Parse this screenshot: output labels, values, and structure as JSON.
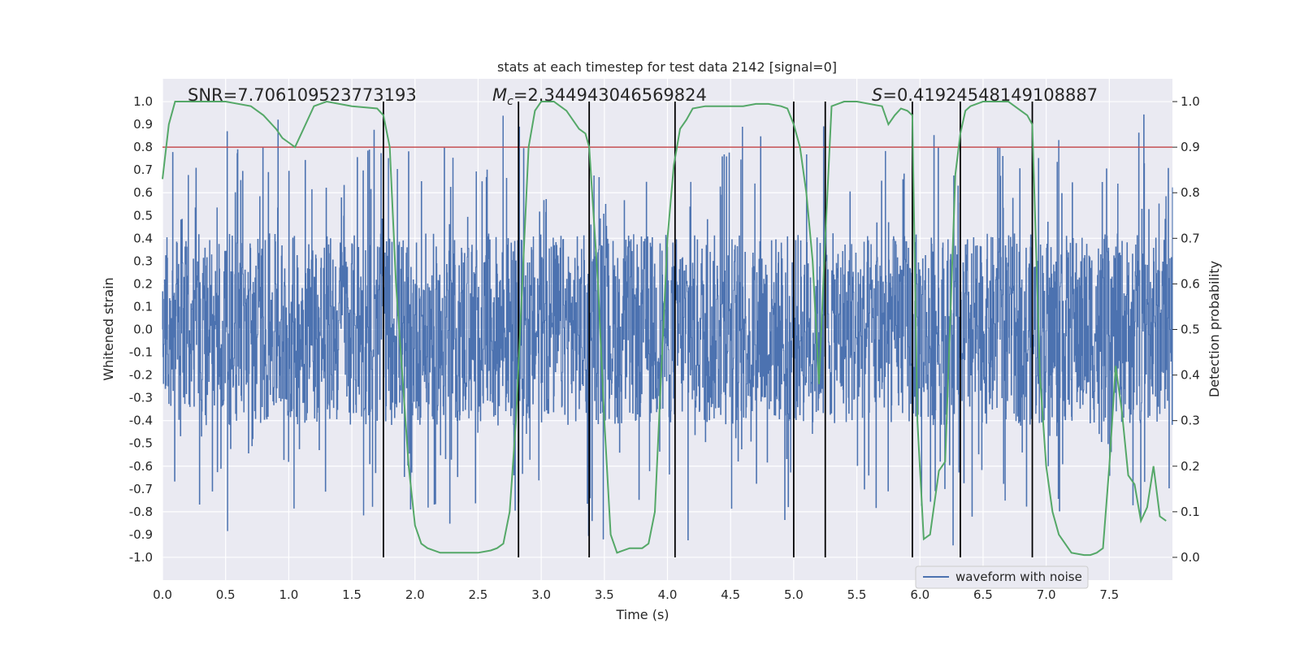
{
  "chart_data": {
    "type": "line",
    "title": "stats at each timestep for test data 2142 [signal=0]",
    "xlabel": "Time (s)",
    "ylabel": "Whitened strain",
    "y2label": "Detection probability",
    "xlim": [
      0.0,
      8.0
    ],
    "ylim": [
      -1.1,
      1.1
    ],
    "y2lim": [
      -0.05,
      1.05
    ],
    "x_ticks": [
      "0.0",
      "0.5",
      "1.0",
      "1.5",
      "2.0",
      "2.5",
      "3.0",
      "3.5",
      "4.0",
      "4.5",
      "5.0",
      "5.5",
      "6.0",
      "6.5",
      "7.0",
      "7.5"
    ],
    "y_ticks": [
      "1.0",
      "0.9",
      "0.8",
      "0.7",
      "0.6",
      "0.5",
      "0.4",
      "0.3",
      "0.2",
      "0.1",
      "0.0",
      "-0.1",
      "-0.2",
      "-0.3",
      "-0.4",
      "-0.5",
      "-0.6",
      "-0.7",
      "-0.8",
      "-0.9",
      "-1.0"
    ],
    "y2_ticks": [
      "1.0",
      "0.9",
      "0.8",
      "0.7",
      "0.6",
      "0.5",
      "0.4",
      "0.3",
      "0.2",
      "0.1",
      "0.0"
    ],
    "annotations": {
      "snr": "SNR=7.706109523773193",
      "mc_symbol": "M",
      "mc_subscript": "c",
      "mc_value": "=2.344943046569824",
      "s_symbol": "S",
      "s_value": "=0.41924548149108887"
    },
    "threshold": 0.9,
    "transitions": [
      1.75,
      2.82,
      3.38,
      4.06,
      5.0,
      5.25,
      5.94,
      6.32,
      6.89
    ],
    "legend": {
      "label": "waveform with noise",
      "location": "lower-right"
    },
    "series": [
      {
        "name": "waveform with noise",
        "color": "#4c72b0",
        "description": "whitened strain noise, band roughly -0.4 to 0.4 with spikes up to ~0.9 and down to ~-0.98"
      },
      {
        "name": "Detection probability",
        "color": "#55a868",
        "x": [
          0.0,
          0.05,
          0.1,
          0.2,
          0.3,
          0.5,
          0.7,
          0.8,
          0.9,
          0.95,
          1.0,
          1.05,
          1.1,
          1.2,
          1.3,
          1.5,
          1.7,
          1.75,
          1.8,
          1.85,
          1.9,
          1.95,
          2.0,
          2.05,
          2.1,
          2.2,
          2.3,
          2.4,
          2.5,
          2.6,
          2.65,
          2.7,
          2.75,
          2.8,
          2.85,
          2.9,
          2.95,
          3.0,
          3.1,
          3.2,
          3.3,
          3.35,
          3.38,
          3.45,
          3.5,
          3.55,
          3.6,
          3.7,
          3.8,
          3.85,
          3.9,
          3.95,
          4.0,
          4.05,
          4.1,
          4.15,
          4.2,
          4.3,
          4.5,
          4.6,
          4.7,
          4.8,
          4.9,
          4.95,
          5.0,
          5.05,
          5.1,
          5.15,
          5.2,
          5.25,
          5.3,
          5.4,
          5.5,
          5.6,
          5.7,
          5.75,
          5.8,
          5.85,
          5.9,
          5.94,
          5.98,
          6.03,
          6.08,
          6.15,
          6.2,
          6.25,
          6.28,
          6.32,
          6.36,
          6.4,
          6.5,
          6.7,
          6.8,
          6.85,
          6.89,
          6.95,
          7.0,
          7.05,
          7.1,
          7.2,
          7.3,
          7.35,
          7.4,
          7.45,
          7.5,
          7.55,
          7.6,
          7.65,
          7.7,
          7.75,
          7.8,
          7.85,
          7.9,
          7.95
        ],
        "values": [
          0.83,
          0.95,
          1.0,
          1.0,
          1.0,
          1.0,
          0.99,
          0.97,
          0.94,
          0.92,
          0.91,
          0.9,
          0.93,
          0.99,
          1.0,
          0.99,
          0.985,
          0.97,
          0.9,
          0.6,
          0.4,
          0.2,
          0.07,
          0.03,
          0.02,
          0.01,
          0.01,
          0.01,
          0.01,
          0.015,
          0.02,
          0.03,
          0.1,
          0.3,
          0.6,
          0.9,
          0.98,
          1.0,
          1.0,
          0.98,
          0.94,
          0.93,
          0.9,
          0.6,
          0.3,
          0.05,
          0.01,
          0.02,
          0.02,
          0.03,
          0.1,
          0.4,
          0.7,
          0.86,
          0.94,
          0.96,
          0.985,
          0.99,
          0.99,
          0.99,
          0.995,
          0.995,
          0.99,
          0.985,
          0.95,
          0.9,
          0.8,
          0.65,
          0.38,
          0.7,
          0.99,
          1.0,
          1.0,
          0.995,
          0.99,
          0.95,
          0.97,
          0.985,
          0.98,
          0.97,
          0.3,
          0.04,
          0.05,
          0.19,
          0.21,
          0.6,
          0.84,
          0.93,
          0.98,
          0.99,
          1.0,
          1.0,
          0.98,
          0.97,
          0.95,
          0.4,
          0.2,
          0.1,
          0.05,
          0.01,
          0.005,
          0.005,
          0.01,
          0.02,
          0.2,
          0.42,
          0.32,
          0.18,
          0.16,
          0.08,
          0.11,
          0.2,
          0.09,
          0.08
        ]
      }
    ]
  }
}
